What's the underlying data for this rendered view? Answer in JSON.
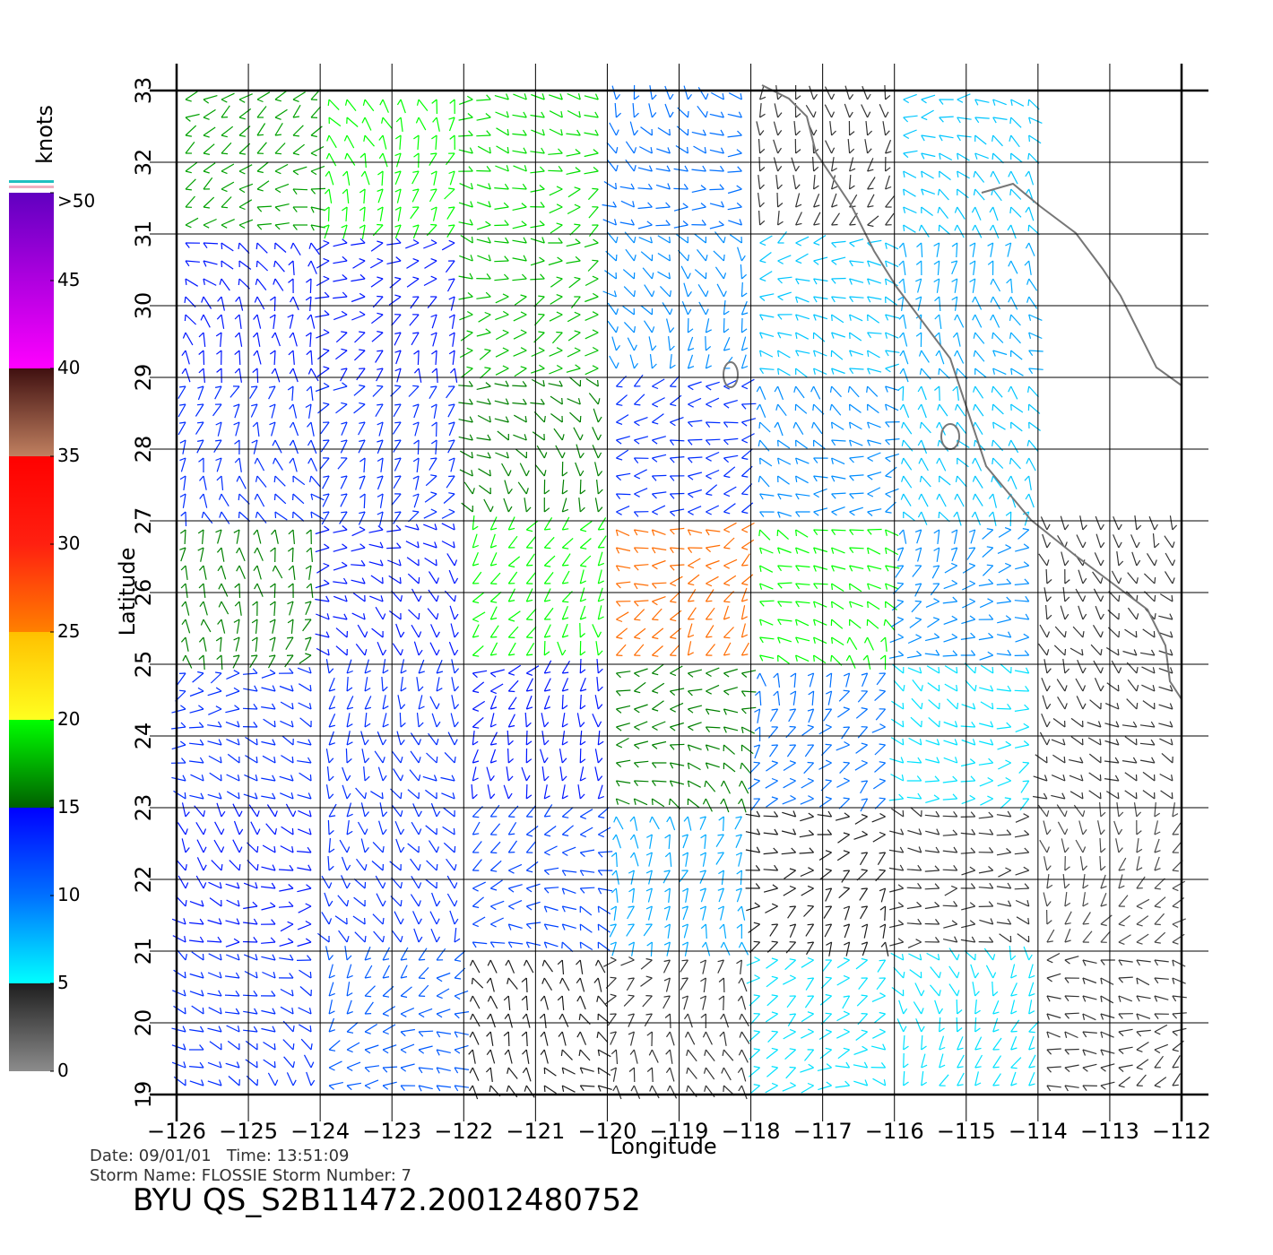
{
  "chart_data": {
    "type": "wind_field",
    "xlabel": "Longitude",
    "ylabel": "Latitude",
    "colorbar_label": "knots",
    "info_line_1": "Date: 09/01/01   Time: 13:51:09",
    "info_line_2": "Storm Name: FLOSSIE   Storm Number: 7",
    "footer": "BYU QS_S2B11472.20012480752",
    "xlim": [
      -126,
      -112
    ],
    "ylim": [
      19,
      33
    ],
    "xticks": [
      {
        "value": -126,
        "label": "−126"
      },
      {
        "value": -125,
        "label": "−125"
      },
      {
        "value": -124,
        "label": "−124"
      },
      {
        "value": -123,
        "label": "−123"
      },
      {
        "value": -122,
        "label": "−122"
      },
      {
        "value": -121,
        "label": "−121"
      },
      {
        "value": -120,
        "label": "−120"
      },
      {
        "value": -119,
        "label": "−119"
      },
      {
        "value": -118,
        "label": "−118"
      },
      {
        "value": -117,
        "label": "−117"
      },
      {
        "value": -116,
        "label": "−116"
      },
      {
        "value": -115,
        "label": "−115"
      },
      {
        "value": -114,
        "label": "−114"
      },
      {
        "value": -113,
        "label": "−113"
      },
      {
        "value": -112,
        "label": "−112"
      }
    ],
    "yticks": [
      19,
      20,
      21,
      22,
      23,
      24,
      25,
      26,
      27,
      28,
      29,
      30,
      31,
      32,
      33
    ],
    "grid": true,
    "colorbar_lim": [
      0,
      50
    ],
    "colorbar_ticks": [
      0,
      5,
      10,
      15,
      20,
      25,
      30,
      35,
      40,
      45,
      {
        "value": 50,
        "label": ">50"
      }
    ],
    "colorscale": [
      {
        "value": 0,
        "color": "#8c8c8c"
      },
      {
        "value": 5,
        "color": "#1e1e1e"
      },
      {
        "value": 5,
        "color": "#00ffff"
      },
      {
        "value": 10,
        "color": "#0070ff"
      },
      {
        "value": 15,
        "color": "#0000ff"
      },
      {
        "value": 15,
        "color": "#006000"
      },
      {
        "value": 20,
        "color": "#00ff00"
      },
      {
        "value": 20,
        "color": "#ffff20"
      },
      {
        "value": 25,
        "color": "#ffc000"
      },
      {
        "value": 25,
        "color": "#ff8000"
      },
      {
        "value": 30,
        "color": "#ff2010"
      },
      {
        "value": 35,
        "color": "#ff0000"
      },
      {
        "value": 35,
        "color": "#c08060"
      },
      {
        "value": 40,
        "color": "#401010"
      },
      {
        "value": 40,
        "color": "#ff00ff"
      },
      {
        "value": 50,
        "color": "#6000c0"
      }
    ],
    "cell_lon": [
      -126,
      -124,
      -122,
      -120,
      -118,
      -116,
      -114
    ],
    "cell_lat": [
      31,
      29,
      27,
      25,
      23,
      21,
      19
    ],
    "cell_size": 2,
    "speed": [
      [
        17,
        20,
        19,
        10,
        4,
        7,
        null
      ],
      [
        14,
        14,
        18,
        9,
        7,
        8,
        null
      ],
      [
        13,
        13,
        16,
        13,
        9,
        7,
        null
      ],
      [
        16,
        14,
        20,
        26,
        20,
        9,
        4
      ],
      [
        13,
        13,
        14,
        16,
        10,
        6,
        4
      ],
      [
        14,
        13,
        12,
        8,
        5,
        4,
        3
      ],
      [
        13,
        11,
        5,
        4,
        6,
        6,
        4
      ]
    ]
  }
}
